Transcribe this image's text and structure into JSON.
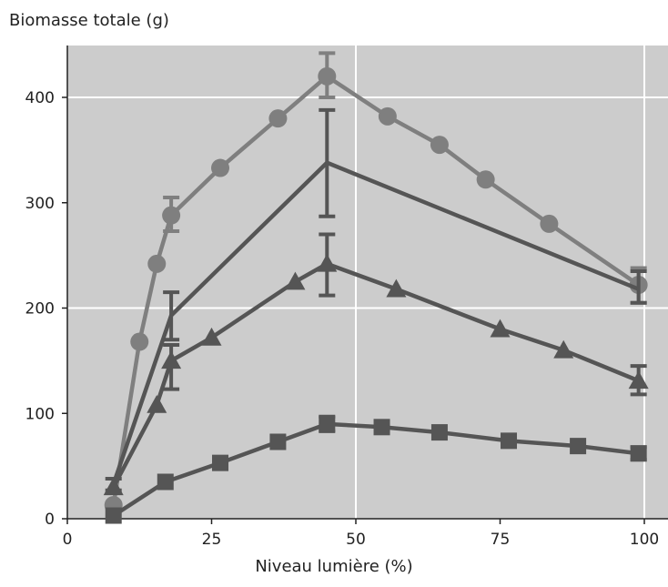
{
  "chart_data": {
    "type": "line",
    "ylabel": "Biomasse totale (g)",
    "xlabel": "Niveau lumière (%)",
    "xlim": [
      0,
      100
    ],
    "ylim": [
      0,
      450
    ],
    "xticks": [
      0,
      25,
      50,
      75,
      100
    ],
    "yticks": [
      0,
      100,
      200,
      300,
      400
    ],
    "grid_x": [
      50,
      100
    ],
    "grid_y": [
      200,
      400
    ],
    "colors": {
      "plot_bg": "#cccccc",
      "light": "#7f7f7f",
      "dark": "#555555",
      "grid": "#ffffff"
    },
    "series": [
      {
        "marker": "circle",
        "color": "#7f7f7f",
        "x": [
          8,
          12.5,
          15.5,
          18,
          26.5,
          36.5,
          45,
          55.5,
          64.5,
          72.5,
          83.5,
          99
        ],
        "y": [
          13,
          168,
          242,
          288,
          333,
          380,
          420,
          382,
          355,
          322,
          280,
          222
        ],
        "errors": [
          {
            "x": 18,
            "lo": 273,
            "hi": 305
          },
          {
            "x": 45,
            "lo": 400,
            "hi": 442
          },
          {
            "x": 99,
            "lo": 205,
            "hi": 238
          }
        ]
      },
      {
        "marker": "none",
        "color": "#555555",
        "x": [
          8,
          18,
          45,
          99
        ],
        "y": [
          33,
          193,
          338,
          218
        ],
        "errors": [
          {
            "x": 8,
            "lo": 27,
            "hi": 38
          },
          {
            "x": 18,
            "lo": 170,
            "hi": 215
          },
          {
            "x": 45,
            "lo": 287,
            "hi": 388
          },
          {
            "x": 99,
            "lo": 205,
            "hi": 235
          }
        ]
      },
      {
        "marker": "triangle",
        "color": "#555555",
        "x": [
          8,
          15.5,
          18,
          25,
          39.5,
          45,
          57,
          75,
          86,
          99
        ],
        "y": [
          30,
          108,
          150,
          172,
          225,
          242,
          218,
          180,
          160,
          131
        ],
        "errors": [
          {
            "x": 18,
            "lo": 123,
            "hi": 165
          },
          {
            "x": 45,
            "lo": 212,
            "hi": 270
          },
          {
            "x": 99,
            "lo": 118,
            "hi": 145
          }
        ]
      },
      {
        "marker": "square",
        "color": "#555555",
        "x": [
          8,
          17,
          26.5,
          36.5,
          45,
          54.5,
          64.5,
          76.5,
          88.5,
          99
        ],
        "y": [
          3,
          35,
          53,
          73,
          90,
          87,
          82,
          74,
          69,
          62
        ],
        "errors": [
          {
            "x": 45,
            "lo": 83,
            "hi": 97
          },
          {
            "x": 99,
            "lo": 56,
            "hi": 68
          }
        ]
      }
    ]
  }
}
